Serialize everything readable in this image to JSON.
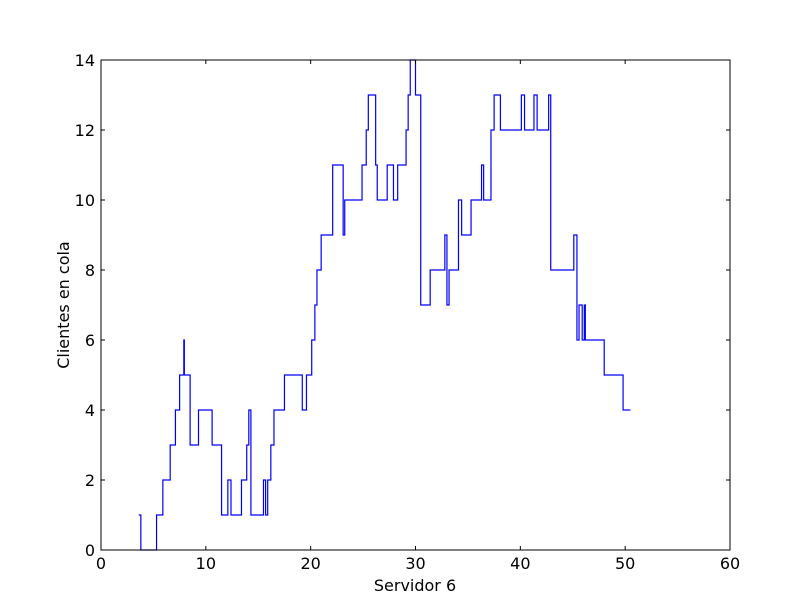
{
  "chart_data": {
    "type": "line",
    "title": "",
    "xlabel": "Servidor 6",
    "ylabel": "Clientes en cola",
    "xlim": [
      0,
      60
    ],
    "ylim": [
      0,
      14
    ],
    "xticks": [
      0,
      10,
      20,
      30,
      40,
      50,
      60
    ],
    "yticks": [
      0,
      2,
      4,
      6,
      8,
      10,
      12,
      14
    ],
    "xtick_labels": [
      "0",
      "10",
      "20",
      "30",
      "40",
      "50",
      "60"
    ],
    "ytick_labels": [
      "0",
      "2",
      "4",
      "6",
      "8",
      "10",
      "12",
      "14"
    ],
    "grid": false,
    "legend": "none",
    "line_color": "#0000ff",
    "series": [
      {
        "drawstyle": "steps-post",
        "x": [
          3.6,
          3.8,
          5.3,
          5.9,
          6.6,
          7.1,
          7.5,
          7.9,
          7.95,
          8.5,
          9.3,
          10.6,
          11.5,
          12.1,
          12.4,
          13.4,
          13.9,
          14.1,
          14.3,
          15.5,
          15.7,
          15.9,
          16.2,
          16.5,
          17.5,
          19.2,
          19.6,
          20.1,
          20.4,
          20.6,
          21.0,
          22.1,
          23.1,
          23.25,
          24.9,
          25.3,
          25.5,
          26.2,
          26.35,
          27.3,
          27.9,
          28.3,
          29.1,
          29.3,
          29.5,
          30.0,
          30.5,
          31.4,
          32.8,
          33.0,
          33.2,
          34.1,
          34.4,
          35.3,
          36.3,
          36.5,
          37.2,
          37.5,
          38.1,
          40.1,
          40.4,
          41.3,
          41.6,
          42.7,
          42.9,
          45.1,
          45.4,
          45.6,
          45.9,
          46.1,
          46.2,
          48.0,
          49.8,
          50.5
        ],
        "y": [
          1,
          0,
          1,
          2,
          3,
          4,
          5,
          6,
          5,
          3,
          4,
          3,
          1,
          2,
          1,
          2,
          3,
          4,
          1,
          2,
          1,
          2,
          3,
          4,
          5,
          4,
          5,
          6,
          7,
          8,
          9,
          11,
          9,
          10,
          11,
          12,
          13,
          11,
          10,
          11,
          10,
          11,
          12,
          13,
          14,
          13,
          7,
          8,
          9,
          7,
          8,
          10,
          9,
          10,
          11,
          10,
          12,
          13,
          12,
          13,
          12,
          13,
          12,
          13,
          8,
          9,
          6,
          7,
          6,
          7,
          6,
          5,
          4,
          4
        ]
      }
    ]
  }
}
